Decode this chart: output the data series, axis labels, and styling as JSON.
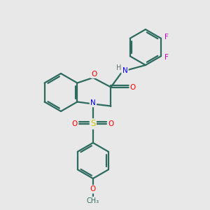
{
  "bg_color": "#e8e8e8",
  "bond_color": "#2d6b5e",
  "atom_colors": {
    "O": "#ff0000",
    "N": "#0000ff",
    "S": "#cccc00",
    "F": "#cc00cc",
    "H": "#607070",
    "C": "#2d6b5e"
  },
  "linewidth": 1.6,
  "figsize": [
    3.0,
    3.0
  ],
  "dpi": 100
}
